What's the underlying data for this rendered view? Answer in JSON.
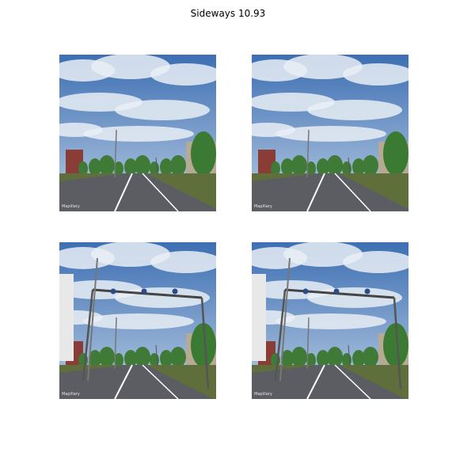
{
  "figure": {
    "title": "Sideways 10.93"
  },
  "panels": [
    {
      "id": "top-left",
      "scene": "street-wide",
      "watermark": "Mapillary"
    },
    {
      "id": "top-right",
      "scene": "street-wide",
      "watermark": "Mapillary"
    },
    {
      "id": "bottom-left",
      "scene": "street-gantry",
      "watermark": "Mapillary"
    },
    {
      "id": "bottom-right",
      "scene": "street-gantry",
      "watermark": "Mapillary"
    }
  ],
  "colors": {
    "sky": "#4f80bf",
    "cloud": "#e9eef5",
    "road": "#5c5c63",
    "grass": "#5f6f3c",
    "tree": "#3f7a37"
  }
}
